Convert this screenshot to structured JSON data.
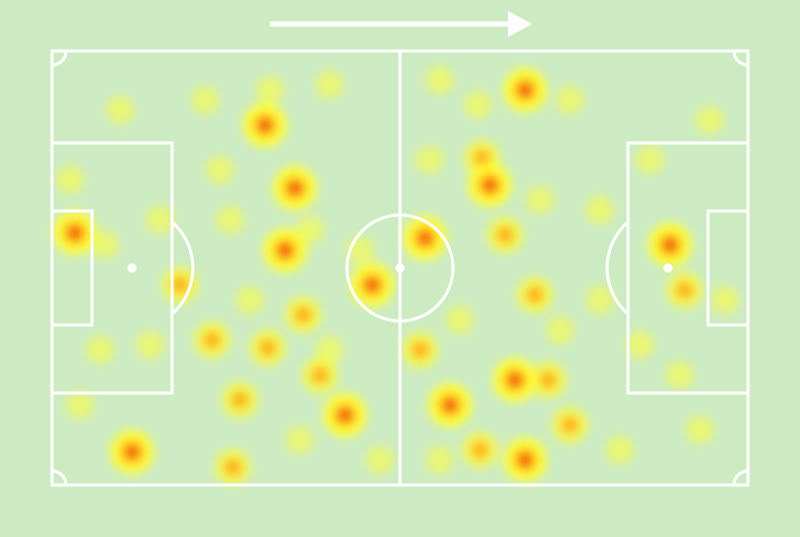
{
  "chart_data": {
    "type": "heatmap",
    "xlim": [
      0,
      100
    ],
    "ylim": [
      0,
      100
    ],
    "colors": [
      "#ffff33",
      "#ff9a00",
      "#e8180c"
    ],
    "x": [
      68.0,
      61.2,
      30.6,
      34.9,
      33.5,
      36.1,
      42.1,
      11.5,
      26.0,
      3.3,
      7.6,
      23.0,
      31.0,
      38.5,
      46.0,
      44.3,
      53.6,
      62.9,
      65.1,
      61.8,
      69.4,
      57.2,
      66.5,
      71.3,
      74.4,
      68.0,
      61.5,
      55.7,
      88.8,
      90.9,
      90.2,
      96.7,
      18.4,
      9.8,
      22.0,
      39.9,
      31.3,
      55.7,
      74.4,
      85.9,
      2.6,
      6.9,
      4.0,
      14.1,
      27.0,
      28.4,
      35.6,
      47.1,
      52.9,
      58.6,
      73.0,
      78.7,
      84.5,
      81.6,
      93.1,
      94.5,
      25.6,
      37.1,
      39.9,
      70.1,
      78.7,
      54.3,
      24.1,
      15.5
    ],
    "y": [
      9.0,
      12.4,
      17.1,
      31.6,
      45.9,
      60.8,
      83.9,
      92.4,
      95.9,
      41.9,
      44.7,
      66.6,
      68.4,
      74.7,
      53.9,
      45.9,
      43.1,
      30.9,
      42.4,
      24.7,
      56.2,
      81.6,
      75.8,
      75.8,
      86.2,
      94.2,
      91.9,
      94.2,
      44.7,
      55.1,
      74.7,
      57.4,
      53.9,
      13.6,
      11.3,
      7.8,
      9.0,
      6.7,
      11.3,
      25.1,
      29.7,
      68.9,
      81.6,
      67.7,
      80.4,
      57.4,
      89.6,
      94.2,
      68.9,
      62.0,
      64.3,
      57.4,
      67.7,
      91.9,
      87.3,
      15.9,
      38.9,
      41.2,
      68.9,
      34.3,
      36.6,
      25.1,
      27.4,
      38.9
    ],
    "values": [
      3,
      1,
      3,
      3,
      3,
      2,
      3,
      3,
      2,
      3,
      1,
      2,
      2,
      2,
      3,
      1,
      3,
      3,
      2,
      2,
      2,
      3,
      3,
      2,
      2,
      3,
      2,
      1,
      3,
      2,
      1,
      1,
      2,
      1,
      1,
      1,
      1,
      1,
      1,
      1,
      1,
      1,
      1,
      1,
      2,
      1,
      1,
      1,
      2,
      1,
      1,
      1,
      1,
      1,
      1,
      1,
      1,
      1,
      1,
      1,
      1,
      1,
      1,
      1
    ]
  }
}
